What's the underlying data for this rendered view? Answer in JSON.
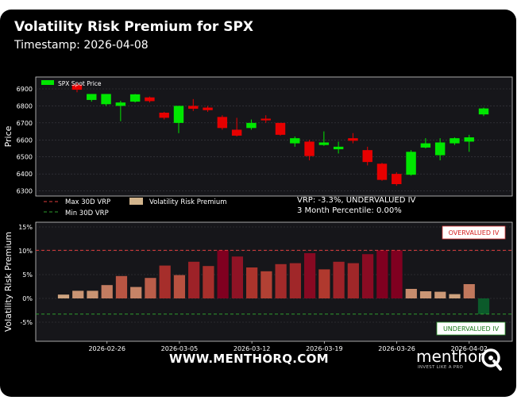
{
  "header": {
    "title": "Volatility Risk Premium for SPX",
    "subtitle": "Timestamp: 2026-04-08"
  },
  "chart_data": [
    {
      "type": "candlestick",
      "ylabel": "Price",
      "ylim": [
        6270,
        6970
      ],
      "yticks": [
        6300,
        6400,
        6500,
        6600,
        6700,
        6800,
        6900
      ],
      "grid": true,
      "legend": {
        "position": "top-left",
        "entries": [
          {
            "label": "SPX Spot Price",
            "color": "#00e600"
          }
        ]
      },
      "colors": {
        "up": "#00e600",
        "down": "#e60000"
      },
      "series": [
        {
          "date": "2026-02-23",
          "open": 6925,
          "high": 6935,
          "low": 6880,
          "close": 6895
        },
        {
          "date": "2026-02-24",
          "open": 6835,
          "high": 6870,
          "low": 6825,
          "close": 6870
        },
        {
          "date": "2026-02-25",
          "open": 6810,
          "high": 6870,
          "low": 6800,
          "close": 6870
        },
        {
          "date": "2026-02-26",
          "open": 6800,
          "high": 6830,
          "low": 6710,
          "close": 6820
        },
        {
          "date": "2026-02-27",
          "open": 6825,
          "high": 6870,
          "low": 6820,
          "close": 6868
        },
        {
          "date": "2026-03-02",
          "open": 6850,
          "high": 6855,
          "low": 6820,
          "close": 6828
        },
        {
          "date": "2026-03-03",
          "open": 6760,
          "high": 6765,
          "low": 6720,
          "close": 6730
        },
        {
          "date": "2026-03-04",
          "open": 6700,
          "high": 6800,
          "low": 6640,
          "close": 6800
        },
        {
          "date": "2026-03-05",
          "open": 6800,
          "high": 6840,
          "low": 6770,
          "close": 6783
        },
        {
          "date": "2026-03-06",
          "open": 6790,
          "high": 6800,
          "low": 6765,
          "close": 6775
        },
        {
          "date": "2026-03-09",
          "open": 6735,
          "high": 6745,
          "low": 6660,
          "close": 6670
        },
        {
          "date": "2026-03-10",
          "open": 6660,
          "high": 6730,
          "low": 6620,
          "close": 6625
        },
        {
          "date": "2026-03-11",
          "open": 6670,
          "high": 6720,
          "low": 6660,
          "close": 6700
        },
        {
          "date": "2026-03-12",
          "open": 6725,
          "high": 6745,
          "low": 6700,
          "close": 6715
        },
        {
          "date": "2026-03-13",
          "open": 6700,
          "high": 6700,
          "low": 6625,
          "close": 6630
        },
        {
          "date": "2026-03-16",
          "open": 6580,
          "high": 6620,
          "low": 6560,
          "close": 6610
        },
        {
          "date": "2026-03-17",
          "open": 6590,
          "high": 6600,
          "low": 6480,
          "close": 6505
        },
        {
          "date": "2026-03-18",
          "open": 6570,
          "high": 6650,
          "low": 6565,
          "close": 6585
        },
        {
          "date": "2026-03-19",
          "open": 6545,
          "high": 6590,
          "low": 6520,
          "close": 6560
        },
        {
          "date": "2026-03-20",
          "open": 6610,
          "high": 6640,
          "low": 6580,
          "close": 6595
        },
        {
          "date": "2026-03-23",
          "open": 6540,
          "high": 6560,
          "low": 6450,
          "close": 6470
        },
        {
          "date": "2026-03-24",
          "open": 6460,
          "high": 6465,
          "low": 6360,
          "close": 6365
        },
        {
          "date": "2026-03-25",
          "open": 6400,
          "high": 6410,
          "low": 6330,
          "close": 6340
        },
        {
          "date": "2026-03-26",
          "open": 6395,
          "high": 6540,
          "low": 6390,
          "close": 6530
        },
        {
          "date": "2026-03-27",
          "open": 6555,
          "high": 6610,
          "low": 6550,
          "close": 6580
        },
        {
          "date": "2026-03-30",
          "open": 6510,
          "high": 6610,
          "low": 6480,
          "close": 6585
        },
        {
          "date": "2026-03-31",
          "open": 6580,
          "high": 6615,
          "low": 6570,
          "close": 6610
        },
        {
          "date": "2026-04-01",
          "open": 6590,
          "high": 6630,
          "low": 6530,
          "close": 6615
        },
        {
          "date": "2026-04-02",
          "open": 6750,
          "high": 6790,
          "low": 6740,
          "close": 6785
        }
      ]
    },
    {
      "type": "bar",
      "ylabel": "Volatility Risk Premium",
      "ylim": [
        -9,
        16
      ],
      "yticks": [
        -5,
        0,
        5,
        10,
        15
      ],
      "ytick_format": "percent",
      "grid": true,
      "x_tick_labels": [
        "2026-02-26",
        "2026-03-05",
        "2026-03-12",
        "2026-03-19",
        "2026-03-26",
        "2026-04-02"
      ],
      "legend": {
        "position": "above-plot",
        "entries": [
          {
            "label": "Max 30D VRP",
            "color": "#e03c3c",
            "style": "dashed"
          },
          {
            "label": "Volatility Risk Premium",
            "color": "#d2b48c",
            "style": "patch"
          },
          {
            "label": "Min 30D VRP",
            "color": "#2e9b2e",
            "style": "dashed"
          }
        ]
      },
      "max_line": 10.1,
      "min_line": -3.3,
      "annotations": {
        "vrp": "VRP: -3.3%, UNDERVALUED IV",
        "percentile": "3 Month Percentile: 0.00%",
        "overvalued": "OVERVALUED IV",
        "undervalued": "UNDERVALUED IV"
      },
      "bars": [
        {
          "date": "2026-02-23",
          "value": 0.8
        },
        {
          "date": "2026-02-24",
          "value": 1.6
        },
        {
          "date": "2026-02-25",
          "value": 1.6
        },
        {
          "date": "2026-02-26",
          "value": 2.8
        },
        {
          "date": "2026-02-27",
          "value": 4.7
        },
        {
          "date": "2026-03-02",
          "value": 2.4
        },
        {
          "date": "2026-03-03",
          "value": 4.3
        },
        {
          "date": "2026-03-04",
          "value": 6.9
        },
        {
          "date": "2026-03-05",
          "value": 4.9
        },
        {
          "date": "2026-03-06",
          "value": 7.7
        },
        {
          "date": "2026-03-09",
          "value": 6.8
        },
        {
          "date": "2026-03-10",
          "value": 10.1
        },
        {
          "date": "2026-03-11",
          "value": 8.8
        },
        {
          "date": "2026-03-12",
          "value": 6.5
        },
        {
          "date": "2026-03-13",
          "value": 5.7
        },
        {
          "date": "2026-03-16",
          "value": 7.2
        },
        {
          "date": "2026-03-17",
          "value": 7.4
        },
        {
          "date": "2026-03-18",
          "value": 9.5
        },
        {
          "date": "2026-03-19",
          "value": 6.1
        },
        {
          "date": "2026-03-20",
          "value": 7.7
        },
        {
          "date": "2026-03-23",
          "value": 7.4
        },
        {
          "date": "2026-03-24",
          "value": 9.3
        },
        {
          "date": "2026-03-25",
          "value": 10.1
        },
        {
          "date": "2026-03-26",
          "value": 10.1
        },
        {
          "date": "2026-03-27",
          "value": 2.0
        },
        {
          "date": "2026-03-30",
          "value": 1.5
        },
        {
          "date": "2026-03-31",
          "value": 1.4
        },
        {
          "date": "2026-04-01",
          "value": 0.9
        },
        {
          "date": "2026-04-02",
          "value": 3.0
        },
        {
          "date": "2026-04-03",
          "value": -3.3
        }
      ]
    }
  ],
  "footer": {
    "url": "WWW.MENTHORQ.COM",
    "brand_name": "menthor",
    "brand_tagline": "INVEST LIKE A PRO",
    "logo_icon": "menthor-q-logo-icon"
  }
}
